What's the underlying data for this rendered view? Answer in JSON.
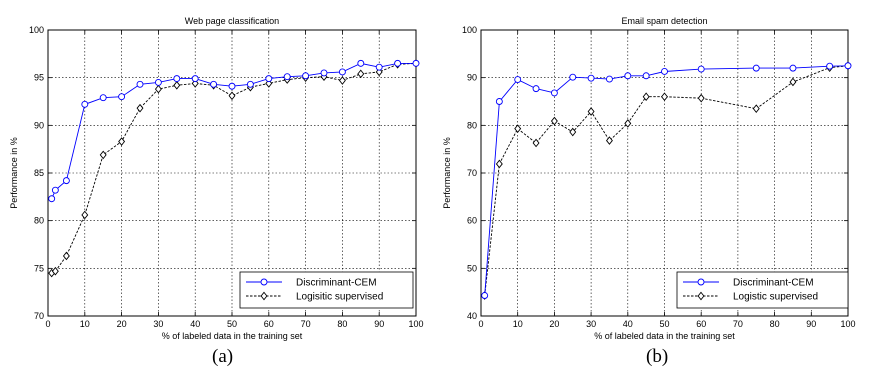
{
  "chart_data": [
    {
      "type": "line",
      "title": "Web page classification",
      "xlabel": "% of labeled data in the training set",
      "ylabel": "Performance in %",
      "xlim": [
        0,
        100
      ],
      "ylim": [
        70,
        100
      ],
      "xticks": [
        0,
        10,
        20,
        30,
        40,
        50,
        60,
        70,
        80,
        90,
        100
      ],
      "yticks": [
        70,
        75,
        80,
        85,
        90,
        95,
        100
      ],
      "grid": true,
      "legend_position": "bottom-right",
      "caption": "(a)",
      "series": [
        {
          "name": "Discriminant-CEM",
          "color": "#0000ff",
          "marker": "circle",
          "line": "solid",
          "x": [
            1,
            2,
            5,
            10,
            15,
            20,
            25,
            30,
            35,
            40,
            45,
            50,
            55,
            60,
            65,
            70,
            75,
            80,
            85,
            90,
            95,
            100
          ],
          "y": [
            82.3,
            83.2,
            84.2,
            92.2,
            92.9,
            93.0,
            94.3,
            94.5,
            94.9,
            94.9,
            94.3,
            94.1,
            94.3,
            94.9,
            95.1,
            95.2,
            95.5,
            95.6,
            96.5,
            96.1,
            96.5,
            96.5
          ]
        },
        {
          "name": "Logisitic supervised",
          "color": "#000000",
          "marker": "diamond",
          "line": "dashed",
          "x": [
            1,
            2,
            5,
            10,
            15,
            20,
            25,
            30,
            35,
            40,
            45,
            50,
            55,
            60,
            65,
            70,
            75,
            80,
            85,
            90,
            95,
            100
          ],
          "y": [
            74.5,
            74.7,
            76.3,
            80.6,
            86.9,
            88.3,
            91.8,
            93.8,
            94.2,
            94.4,
            94.2,
            93.1,
            94.0,
            94.4,
            94.8,
            95.0,
            95.1,
            94.7,
            95.4,
            95.6,
            96.4,
            96.5
          ]
        }
      ]
    },
    {
      "type": "line",
      "title": "Email spam detection",
      "xlabel": "% of labeled data in the training set",
      "ylabel": "Performance in %",
      "xlim": [
        0,
        100
      ],
      "ylim": [
        40,
        100
      ],
      "xticks": [
        0,
        10,
        20,
        30,
        40,
        50,
        60,
        70,
        80,
        90,
        100
      ],
      "yticks": [
        40,
        50,
        60,
        70,
        80,
        90,
        100
      ],
      "grid": true,
      "legend_position": "bottom-right",
      "caption": "(b)",
      "series": [
        {
          "name": "Discriminant-CEM",
          "color": "#0000ff",
          "marker": "circle",
          "line": "solid",
          "x": [
            1,
            5,
            10,
            15,
            20,
            25,
            30,
            35,
            40,
            45,
            50,
            60,
            75,
            85,
            95,
            100
          ],
          "y": [
            44.3,
            85.0,
            89.6,
            87.7,
            86.8,
            90.1,
            89.9,
            89.7,
            90.4,
            90.4,
            91.3,
            91.8,
            92.0,
            92.0,
            92.4,
            92.5
          ]
        },
        {
          "name": "Logistic supervised",
          "color": "#000000",
          "marker": "diamond",
          "line": "dashed",
          "x": [
            1,
            5,
            10,
            15,
            20,
            25,
            30,
            35,
            40,
            45,
            50,
            60,
            75,
            85,
            95,
            100
          ],
          "y": [
            44.3,
            71.9,
            79.3,
            76.3,
            80.9,
            78.6,
            82.9,
            76.8,
            80.4,
            86.0,
            86.0,
            85.7,
            83.5,
            89.1,
            92.1,
            92.5
          ]
        }
      ]
    }
  ]
}
